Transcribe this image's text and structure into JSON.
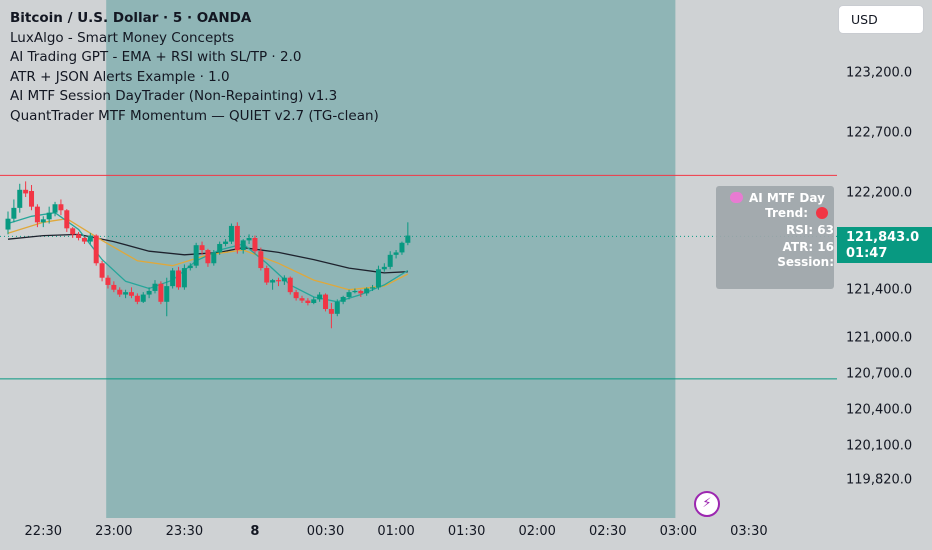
{
  "legend": {
    "symbol_title": "Bitcoin / U.S. Dollar · 5 · OANDA",
    "indicators": [
      "LuxAlgo - Smart Money Concepts",
      "AI Trading GPT - EMA + RSI with SL/TP · 2.0",
      "ATR + JSON Alerts Example · 1.0",
      "AI MTF Session DayTrader (Non-Repainting) v1.3",
      "QuantTrader MTF Momentum — QUIET v2.7 (TG-clean)"
    ]
  },
  "currency_button": {
    "label": "USD"
  },
  "info_box": {
    "title": "AI MTF Day",
    "trend_label": "Trend:",
    "rsi_label": "RSI: 63",
    "atr_label": "ATR: 16",
    "session_label": "Session:"
  },
  "price_tag": {
    "price": "121,843.0",
    "countdown": "01:47"
  },
  "colors": {
    "up": "#089981",
    "down": "#f23645",
    "session_fill": "#8fb5b6",
    "ema_slow": "#1e222d",
    "ema_mid": "#e0a83a",
    "ema_fast": "#26a69a",
    "resistance": "#f23645",
    "support": "#089981",
    "price_line": "#089981"
  },
  "chart_data": {
    "type": "candlestick",
    "title": "Bitcoin / U.S. Dollar · 5 · OANDA",
    "ylim": [
      119650,
      123700
    ],
    "y_ticks": [
      {
        "value": 123200,
        "label": "123,200.0"
      },
      {
        "value": 122700,
        "label": "122,700.0"
      },
      {
        "value": 122200,
        "label": "122,200.0"
      },
      {
        "value": 121400,
        "label": "121,400.0"
      },
      {
        "value": 121000,
        "label": "121,000.0"
      },
      {
        "value": 120700,
        "label": "120,700.0"
      },
      {
        "value": 120400,
        "label": "120,400.0"
      },
      {
        "value": 120100,
        "label": "120,100.0"
      },
      {
        "value": 119820,
        "label": "119,820.0"
      }
    ],
    "x_ticks": [
      {
        "i": 6,
        "label": "22:30",
        "bold": false
      },
      {
        "i": 18,
        "label": "23:00",
        "bold": false
      },
      {
        "i": 30,
        "label": "23:30",
        "bold": false
      },
      {
        "i": 42,
        "label": "8",
        "bold": true
      },
      {
        "i": 54,
        "label": "00:30",
        "bold": false
      },
      {
        "i": 66,
        "label": "01:00",
        "bold": false
      },
      {
        "i": 78,
        "label": "01:30",
        "bold": false
      },
      {
        "i": 90,
        "label": "02:00",
        "bold": false
      },
      {
        "i": 102,
        "label": "02:30",
        "bold": false
      },
      {
        "i": 114,
        "label": "03:00",
        "bold": false
      },
      {
        "i": 126,
        "label": "03:30",
        "bold": false
      }
    ],
    "session_range": [
      16.7,
      113.5
    ],
    "resistance_level": 122350,
    "support_level": 120660,
    "last_price": 121843,
    "candles": [
      {
        "i": 0,
        "o": 121900,
        "h": 122050,
        "l": 121860,
        "c": 121990
      },
      {
        "i": 1,
        "o": 121990,
        "h": 122150,
        "l": 121960,
        "c": 122080
      },
      {
        "i": 2,
        "o": 122080,
        "h": 122280,
        "l": 122040,
        "c": 122230
      },
      {
        "i": 3,
        "o": 122230,
        "h": 122300,
        "l": 122170,
        "c": 122200
      },
      {
        "i": 4,
        "o": 122220,
        "h": 122270,
        "l": 122060,
        "c": 122090
      },
      {
        "i": 5,
        "o": 122090,
        "h": 122110,
        "l": 121920,
        "c": 121960
      },
      {
        "i": 6,
        "o": 121960,
        "h": 122010,
        "l": 121920,
        "c": 121985
      },
      {
        "i": 7,
        "o": 121985,
        "h": 122090,
        "l": 121950,
        "c": 122040
      },
      {
        "i": 8,
        "o": 122040,
        "h": 122130,
        "l": 122010,
        "c": 122110
      },
      {
        "i": 9,
        "o": 122110,
        "h": 122150,
        "l": 122020,
        "c": 122060
      },
      {
        "i": 10,
        "o": 122060,
        "h": 122070,
        "l": 121880,
        "c": 121910
      },
      {
        "i": 11,
        "o": 121910,
        "h": 121920,
        "l": 121830,
        "c": 121860
      },
      {
        "i": 12,
        "o": 121860,
        "h": 121880,
        "l": 121810,
        "c": 121830
      },
      {
        "i": 13,
        "o": 121830,
        "h": 121840,
        "l": 121780,
        "c": 121800
      },
      {
        "i": 14,
        "o": 121800,
        "h": 121870,
        "l": 121780,
        "c": 121850
      },
      {
        "i": 15,
        "o": 121850,
        "h": 121860,
        "l": 121600,
        "c": 121620
      },
      {
        "i": 16,
        "o": 121620,
        "h": 121640,
        "l": 121470,
        "c": 121500
      },
      {
        "i": 17,
        "o": 121500,
        "h": 121520,
        "l": 121410,
        "c": 121440
      },
      {
        "i": 18,
        "o": 121440,
        "h": 121470,
        "l": 121380,
        "c": 121400
      },
      {
        "i": 19,
        "o": 121400,
        "h": 121420,
        "l": 121340,
        "c": 121360
      },
      {
        "i": 20,
        "o": 121360,
        "h": 121400,
        "l": 121330,
        "c": 121380
      },
      {
        "i": 21,
        "o": 121380,
        "h": 121420,
        "l": 121330,
        "c": 121350
      },
      {
        "i": 22,
        "o": 121350,
        "h": 121370,
        "l": 121280,
        "c": 121300
      },
      {
        "i": 23,
        "o": 121300,
        "h": 121380,
        "l": 121290,
        "c": 121360
      },
      {
        "i": 24,
        "o": 121360,
        "h": 121420,
        "l": 121330,
        "c": 121390
      },
      {
        "i": 25,
        "o": 121390,
        "h": 121480,
        "l": 121370,
        "c": 121450
      },
      {
        "i": 26,
        "o": 121450,
        "h": 121470,
        "l": 121280,
        "c": 121300
      },
      {
        "i": 27,
        "o": 121300,
        "h": 121500,
        "l": 121180,
        "c": 121430
      },
      {
        "i": 28,
        "o": 121430,
        "h": 121580,
        "l": 121410,
        "c": 121560
      },
      {
        "i": 29,
        "o": 121560,
        "h": 121590,
        "l": 121400,
        "c": 121420
      },
      {
        "i": 30,
        "o": 121420,
        "h": 121610,
        "l": 121400,
        "c": 121580
      },
      {
        "i": 31,
        "o": 121580,
        "h": 121620,
        "l": 121560,
        "c": 121600
      },
      {
        "i": 32,
        "o": 121600,
        "h": 121790,
        "l": 121580,
        "c": 121770
      },
      {
        "i": 33,
        "o": 121770,
        "h": 121800,
        "l": 121690,
        "c": 121730
      },
      {
        "i": 34,
        "o": 121730,
        "h": 121740,
        "l": 121590,
        "c": 121620
      },
      {
        "i": 35,
        "o": 121620,
        "h": 121730,
        "l": 121600,
        "c": 121710
      },
      {
        "i": 36,
        "o": 121710,
        "h": 121800,
        "l": 121690,
        "c": 121780
      },
      {
        "i": 37,
        "o": 121780,
        "h": 121820,
        "l": 121760,
        "c": 121800
      },
      {
        "i": 38,
        "o": 121800,
        "h": 121950,
        "l": 121780,
        "c": 121930
      },
      {
        "i": 39,
        "o": 121930,
        "h": 121960,
        "l": 121700,
        "c": 121730
      },
      {
        "i": 40,
        "o": 121730,
        "h": 121820,
        "l": 121700,
        "c": 121810
      },
      {
        "i": 41,
        "o": 121810,
        "h": 121860,
        "l": 121780,
        "c": 121830
      },
      {
        "i": 42,
        "o": 121830,
        "h": 121850,
        "l": 121700,
        "c": 121720
      },
      {
        "i": 43,
        "o": 121720,
        "h": 121750,
        "l": 121560,
        "c": 121580
      },
      {
        "i": 44,
        "o": 121580,
        "h": 121600,
        "l": 121440,
        "c": 121460
      },
      {
        "i": 45,
        "o": 121460,
        "h": 121490,
        "l": 121400,
        "c": 121480
      },
      {
        "i": 46,
        "o": 121480,
        "h": 121500,
        "l": 121430,
        "c": 121470
      },
      {
        "i": 47,
        "o": 121470,
        "h": 121520,
        "l": 121440,
        "c": 121500
      },
      {
        "i": 48,
        "o": 121500,
        "h": 121510,
        "l": 121360,
        "c": 121380
      },
      {
        "i": 49,
        "o": 121380,
        "h": 121400,
        "l": 121310,
        "c": 121330
      },
      {
        "i": 50,
        "o": 121330,
        "h": 121350,
        "l": 121290,
        "c": 121310
      },
      {
        "i": 51,
        "o": 121310,
        "h": 121330,
        "l": 121270,
        "c": 121290
      },
      {
        "i": 52,
        "o": 121290,
        "h": 121340,
        "l": 121280,
        "c": 121320
      },
      {
        "i": 53,
        "o": 121320,
        "h": 121380,
        "l": 121300,
        "c": 121360
      },
      {
        "i": 54,
        "o": 121360,
        "h": 121370,
        "l": 121220,
        "c": 121240
      },
      {
        "i": 55,
        "o": 121240,
        "h": 121290,
        "l": 121080,
        "c": 121200
      },
      {
        "i": 56,
        "o": 121200,
        "h": 121320,
        "l": 121180,
        "c": 121300
      },
      {
        "i": 57,
        "o": 121300,
        "h": 121350,
        "l": 121280,
        "c": 121340
      },
      {
        "i": 58,
        "o": 121340,
        "h": 121400,
        "l": 121320,
        "c": 121380
      },
      {
        "i": 59,
        "o": 121380,
        "h": 121410,
        "l": 121370,
        "c": 121390
      },
      {
        "i": 60,
        "o": 121390,
        "h": 121400,
        "l": 121340,
        "c": 121370
      },
      {
        "i": 61,
        "o": 121370,
        "h": 121420,
        "l": 121350,
        "c": 121410
      },
      {
        "i": 62,
        "o": 121410,
        "h": 121440,
        "l": 121390,
        "c": 121420
      },
      {
        "i": 63,
        "o": 121420,
        "h": 121600,
        "l": 121400,
        "c": 121570
      },
      {
        "i": 64,
        "o": 121570,
        "h": 121620,
        "l": 121550,
        "c": 121590
      },
      {
        "i": 65,
        "o": 121590,
        "h": 121720,
        "l": 121570,
        "c": 121690
      },
      {
        "i": 66,
        "o": 121690,
        "h": 121730,
        "l": 121660,
        "c": 121710
      },
      {
        "i": 67,
        "o": 121710,
        "h": 121800,
        "l": 121690,
        "c": 121790
      },
      {
        "i": 68,
        "o": 121790,
        "h": 121960,
        "l": 121770,
        "c": 121850
      }
    ],
    "ema_fast": [
      [
        0,
        121950
      ],
      [
        4,
        122010
      ],
      [
        8,
        122040
      ],
      [
        12,
        121900
      ],
      [
        16,
        121650
      ],
      [
        20,
        121470
      ],
      [
        24,
        121410
      ],
      [
        28,
        121480
      ],
      [
        32,
        121640
      ],
      [
        36,
        121730
      ],
      [
        40,
        121780
      ],
      [
        44,
        121620
      ],
      [
        48,
        121440
      ],
      [
        52,
        121340
      ],
      [
        56,
        121300
      ],
      [
        60,
        121360
      ],
      [
        64,
        121440
      ],
      [
        68,
        121560
      ]
    ],
    "ema_mid": [
      [
        0,
        121870
      ],
      [
        6,
        121960
      ],
      [
        10,
        121990
      ],
      [
        16,
        121810
      ],
      [
        22,
        121640
      ],
      [
        28,
        121600
      ],
      [
        34,
        121690
      ],
      [
        40,
        121730
      ],
      [
        46,
        121620
      ],
      [
        52,
        121480
      ],
      [
        58,
        121400
      ],
      [
        64,
        121430
      ],
      [
        68,
        121530
      ]
    ],
    "ema_slow": [
      [
        0,
        121820
      ],
      [
        6,
        121850
      ],
      [
        12,
        121860
      ],
      [
        18,
        121800
      ],
      [
        24,
        121720
      ],
      [
        30,
        121690
      ],
      [
        36,
        121710
      ],
      [
        40,
        121750
      ],
      [
        46,
        121710
      ],
      [
        52,
        121650
      ],
      [
        58,
        121580
      ],
      [
        64,
        121540
      ],
      [
        68,
        121550
      ]
    ]
  }
}
